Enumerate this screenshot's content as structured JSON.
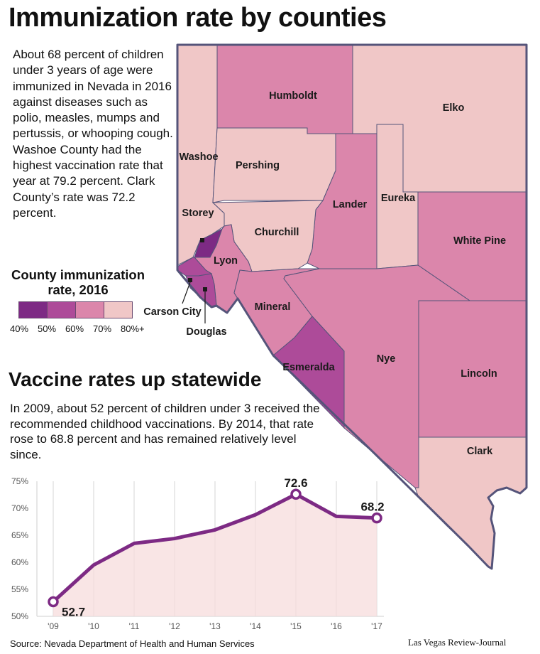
{
  "title": "Immunization rate by counties",
  "intro": "About 68 percent of children under 3 years of age were immunized in Nevada in 2016 against diseases such as polio, measles, mumps and pertussis, or whooping cough. Washoe County had the highest vaccination rate that year at 79.2 percent. Clark County’s rate was 72.2 percent.",
  "legend": {
    "title": "County immunization rate, 2016",
    "ticks": [
      "40%",
      "50%",
      "60%",
      "70%",
      "80%+"
    ],
    "colors": [
      "#7d2a84",
      "#ad4b99",
      "#db86ab",
      "#f0c7c7"
    ]
  },
  "map": {
    "counties": [
      {
        "name": "Humboldt",
        "label": "Humboldt",
        "bin": 2
      },
      {
        "name": "Elko",
        "label": "Elko",
        "bin": 3
      },
      {
        "name": "Washoe",
        "label": "Washoe",
        "bin": 3
      },
      {
        "name": "Pershing",
        "label": "Pershing",
        "bin": 3
      },
      {
        "name": "Lander",
        "label": "Lander",
        "bin": 2
      },
      {
        "name": "Eureka",
        "label": "Eureka",
        "bin": 3
      },
      {
        "name": "Churchill",
        "label": "Churchill",
        "bin": 3
      },
      {
        "name": "White Pine",
        "label": "White Pine",
        "bin": 2
      },
      {
        "name": "Storey",
        "label": "Storey",
        "bin": 0
      },
      {
        "name": "Lyon",
        "label": "Lyon",
        "bin": 2
      },
      {
        "name": "Carson City",
        "label": "Carson City",
        "bin": 1
      },
      {
        "name": "Douglas",
        "label": "Douglas",
        "bin": 1
      },
      {
        "name": "Mineral",
        "label": "Mineral",
        "bin": 2
      },
      {
        "name": "Nye",
        "label": "Nye",
        "bin": 2
      },
      {
        "name": "Esmeralda",
        "label": "Esmeralda",
        "bin": 1
      },
      {
        "name": "Lincoln",
        "label": "Lincoln",
        "bin": 2
      },
      {
        "name": "Clark",
        "label": "Clark",
        "bin": 3
      }
    ]
  },
  "subhead": "Vaccine rates up statewide",
  "subtext": "In 2009, about 52 percent of children under 3 received the recommended childhood vaccinations. By 2014, that rate rose to 68.8 percent and has remained relatively level since.",
  "chart_data": {
    "type": "area",
    "x": [
      "'09",
      "'10",
      "'11",
      "'12",
      "'13",
      "'14",
      "'15",
      "'16",
      "'17"
    ],
    "values": [
      52.7,
      59.5,
      63.5,
      64.4,
      66.0,
      68.8,
      72.6,
      68.5,
      68.2
    ],
    "labeled_points": [
      {
        "index": 0,
        "label": "52.7"
      },
      {
        "index": 6,
        "label": "72.6"
      },
      {
        "index": 8,
        "label": "68.2"
      }
    ],
    "yticks": [
      "50%",
      "55%",
      "60%",
      "65%",
      "70%",
      "75%"
    ],
    "ylim": [
      50,
      75
    ],
    "grid": "vertical",
    "line_color": "#7d2a84",
    "fill_color": "#f7dcdc"
  },
  "source": "Source: Nevada Department of Health and Human Services",
  "credit": "Las Vegas Review-Journal"
}
